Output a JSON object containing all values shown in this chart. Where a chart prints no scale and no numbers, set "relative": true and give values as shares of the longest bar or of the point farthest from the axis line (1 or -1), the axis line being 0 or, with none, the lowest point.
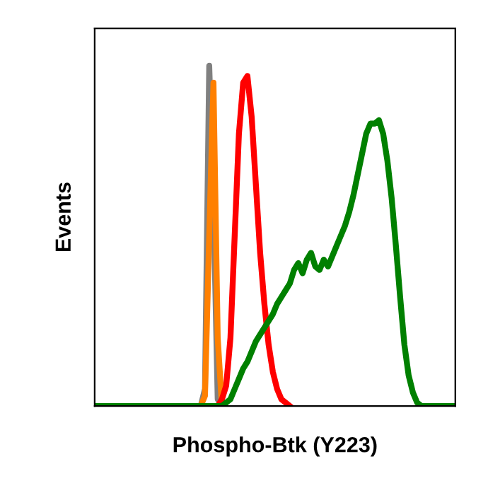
{
  "chart_data": {
    "type": "line",
    "relative": true,
    "xlabel": "Phospho-Btk (Y223)",
    "ylabel": "Events",
    "marker": "none",
    "line_style": "solid",
    "categories": [
      null,
      null,
      null,
      null,
      null,
      null,
      null,
      null,
      null,
      null,
      null,
      null,
      null,
      null,
      null,
      null,
      null,
      null,
      null,
      null,
      null,
      null,
      null,
      null,
      null,
      null,
      null,
      null,
      null,
      null,
      null,
      null,
      null,
      null,
      null,
      null,
      null,
      null,
      null,
      null,
      null,
      null,
      null,
      null,
      null,
      null,
      null,
      null,
      null,
      null,
      null,
      null,
      null,
      null,
      null,
      null,
      null,
      null,
      null,
      null,
      null,
      null,
      null,
      null,
      null,
      null,
      null,
      null,
      null,
      null,
      null,
      null,
      null,
      null,
      null,
      null,
      null,
      null,
      null,
      null,
      null,
      null,
      null,
      null,
      null,
      null
    ],
    "series": [
      {
        "color": "#808080",
        "values": [
          null,
          null,
          null,
          null,
          null,
          null,
          null,
          null,
          null,
          null,
          null,
          null,
          null,
          null,
          null,
          null,
          null,
          null,
          null,
          null,
          null,
          null,
          null,
          null,
          null,
          0,
          0.05,
          1,
          0.6,
          0.02,
          0,
          null,
          null,
          null,
          null,
          null,
          null,
          null,
          null,
          null,
          null,
          null,
          null,
          null,
          null,
          null,
          null,
          null,
          null,
          null,
          null,
          null,
          null,
          null,
          null,
          null,
          null,
          null,
          null,
          null,
          null,
          null,
          null,
          null,
          null,
          null,
          null,
          null,
          null,
          null,
          null,
          null,
          null,
          null,
          null,
          null,
          null,
          null,
          null,
          null,
          null,
          null,
          null,
          null,
          null,
          null
        ]
      },
      {
        "color": "#ff8000",
        "values": [
          null,
          null,
          null,
          null,
          null,
          null,
          null,
          null,
          null,
          null,
          null,
          null,
          null,
          null,
          null,
          null,
          null,
          null,
          null,
          null,
          null,
          null,
          null,
          null,
          null,
          0,
          0.03,
          0.5,
          0.95,
          0.2,
          0,
          null,
          null,
          null,
          null,
          null,
          null,
          null,
          null,
          null,
          null,
          null,
          null,
          null,
          null,
          null,
          null,
          null,
          null,
          null,
          null,
          null,
          null,
          null,
          null,
          null,
          null,
          null,
          null,
          null,
          null,
          null,
          null,
          null,
          null,
          null,
          null,
          null,
          null,
          null,
          null,
          null,
          null,
          null,
          null,
          null,
          null,
          null,
          null,
          null,
          null,
          null,
          null,
          null,
          null,
          null
        ]
      },
      {
        "color": "#ff0000",
        "values": [
          null,
          null,
          null,
          null,
          null,
          null,
          null,
          null,
          null,
          null,
          null,
          null,
          null,
          null,
          null,
          null,
          null,
          null,
          null,
          null,
          null,
          null,
          null,
          null,
          null,
          null,
          null,
          null,
          null,
          0,
          0.02,
          0.06,
          0.2,
          0.5,
          0.8,
          0.95,
          0.97,
          0.85,
          0.65,
          0.45,
          0.3,
          0.18,
          0.1,
          0.05,
          0.02,
          0.01,
          0,
          null,
          null,
          null,
          null,
          null,
          null,
          null,
          null,
          null,
          null,
          null,
          null,
          null,
          null,
          null,
          null,
          null,
          null,
          null,
          null,
          null,
          null,
          null,
          null,
          null,
          null,
          null,
          null,
          null,
          null,
          null,
          null,
          null,
          null,
          null,
          null,
          null,
          null,
          null
        ]
      },
      {
        "color": "#008000",
        "values": [
          0,
          0,
          0,
          0,
          0,
          0,
          0,
          0,
          0,
          0,
          0,
          0,
          0,
          0,
          0,
          0,
          0,
          0,
          0,
          0,
          0,
          0,
          0,
          0,
          0,
          0,
          0,
          0,
          0,
          0,
          0,
          0.01,
          0.02,
          0.05,
          0.08,
          0.11,
          0.13,
          0.16,
          0.19,
          0.21,
          0.23,
          0.25,
          0.27,
          0.3,
          0.32,
          0.34,
          0.36,
          0.4,
          0.42,
          0.39,
          0.43,
          0.45,
          0.41,
          0.4,
          0.43,
          0.41,
          0.44,
          0.47,
          0.5,
          0.53,
          0.57,
          0.62,
          0.68,
          0.74,
          0.8,
          0.83,
          0.83,
          0.84,
          0.8,
          0.72,
          0.61,
          0.47,
          0.32,
          0.18,
          0.09,
          0.04,
          0.01,
          0,
          0,
          0,
          0,
          0,
          0,
          0,
          0,
          0
        ]
      }
    ]
  }
}
